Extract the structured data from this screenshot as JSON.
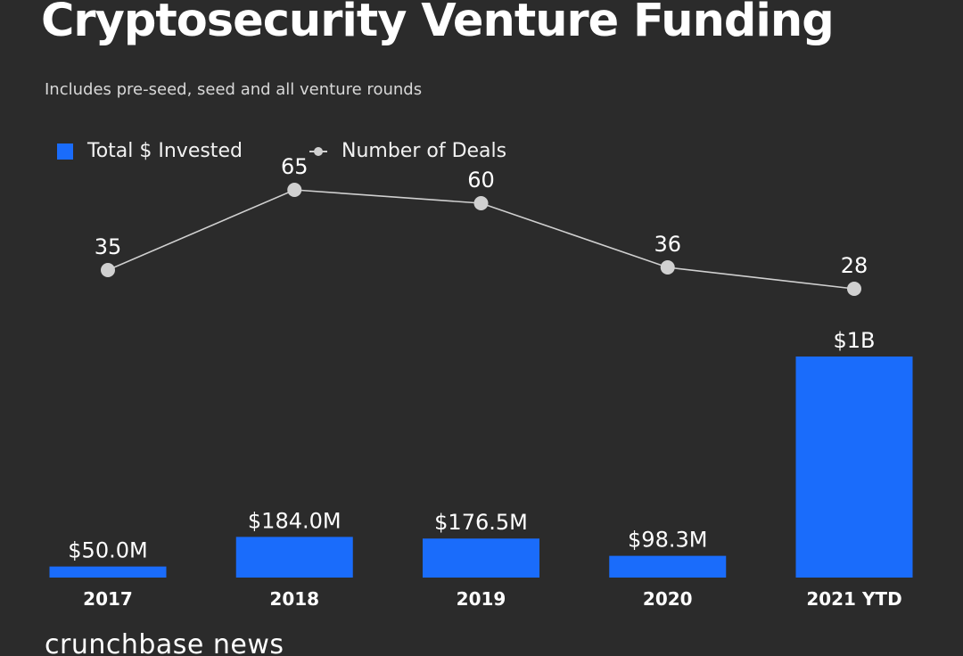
{
  "chart_data": {
    "type": "bar",
    "title": "Cryptosecurity Venture Funding",
    "subtitle": "Includes pre-seed, seed and all venture rounds",
    "categories": [
      "2017",
      "2018",
      "2019",
      "2020",
      "2021 YTD"
    ],
    "series": [
      {
        "name": "Total $ Invested",
        "type": "bar",
        "unit": "USD millions",
        "values": [
          50.0,
          184.0,
          176.5,
          98.3,
          1000
        ],
        "labels": [
          "$50.0M",
          "$184.0M",
          "$176.5M",
          "$98.3M",
          "$1B"
        ],
        "color": "#1a6cfb"
      },
      {
        "name": "Number of Deals",
        "type": "line",
        "values": [
          35,
          65,
          60,
          36,
          28
        ],
        "labels": [
          "35",
          "65",
          "60",
          "36",
          "28"
        ],
        "color": "#d0d0d0"
      }
    ],
    "legend": "top-left",
    "grid": false
  },
  "colors": {
    "background": "#2b2b2b",
    "bar": "#1a6cfb",
    "line": "#d0d0d0"
  },
  "brand": "crunchbase news"
}
